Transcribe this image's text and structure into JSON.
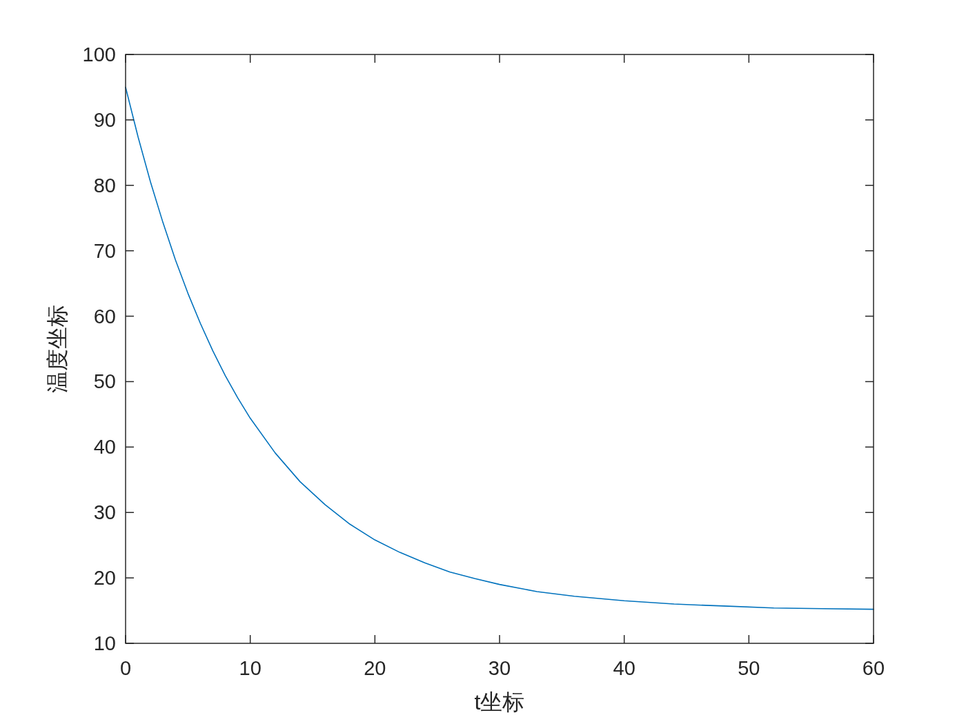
{
  "chart_data": {
    "type": "line",
    "xlabel": "t坐标",
    "ylabel": "温度坐标",
    "xlim": [
      0,
      60
    ],
    "ylim": [
      10,
      100
    ],
    "xticks": [
      0,
      10,
      20,
      30,
      40,
      50,
      60
    ],
    "yticks": [
      10,
      20,
      30,
      40,
      50,
      60,
      70,
      80,
      90,
      100
    ],
    "grid": false,
    "marker": "none",
    "line_style": "solid",
    "series": [
      {
        "color": "#0072bd",
        "x": [
          0,
          1,
          2,
          3,
          4,
          5,
          6,
          7,
          8,
          9,
          10,
          12,
          14,
          16,
          18,
          20,
          22,
          24,
          26,
          28,
          30,
          33,
          36,
          40,
          44,
          48,
          52,
          56,
          60
        ],
        "values": [
          95,
          87.4,
          80.5,
          74.3,
          68.6,
          63.5,
          58.9,
          54.7,
          50.9,
          47.5,
          44.4,
          39.1,
          34.7,
          31.2,
          28.2,
          25.8,
          23.9,
          22.3,
          20.9,
          19.9,
          19.0,
          17.9,
          17.2,
          16.5,
          16.0,
          15.7,
          15.4,
          15.3,
          15.2
        ]
      }
    ]
  }
}
